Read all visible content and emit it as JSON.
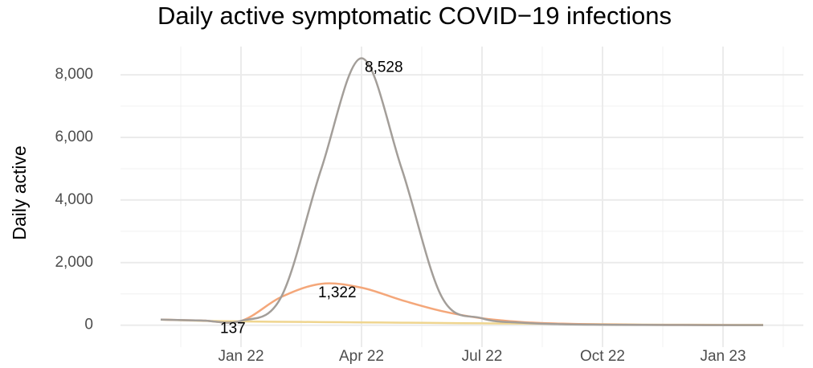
{
  "chart_data": {
    "type": "line",
    "title": "Daily active symptomatic COVID−19 infections",
    "y_label": "Daily active",
    "x": [
      "2021-11",
      "2021-12",
      "2022-01",
      "2022-02",
      "2022-03",
      "2022-04",
      "2022-05",
      "2022-06",
      "2022-07",
      "2022-08",
      "2022-09",
      "2022-10",
      "2022-11",
      "2022-12",
      "2023-01",
      "2023-02"
    ],
    "xlim": [
      "2021-10",
      "2023-03"
    ],
    "xticks": [
      {
        "value": "2022-01",
        "label": "Jan 22"
      },
      {
        "value": "2022-04",
        "label": "Apr 22"
      },
      {
        "value": "2022-07",
        "label": "Jul 22"
      },
      {
        "value": "2022-10",
        "label": "Oct 22"
      },
      {
        "value": "2023-01",
        "label": "Jan 23"
      }
    ],
    "ylim": [
      -700,
      8900
    ],
    "yticks": [
      0,
      {
        "value": 2000,
        "label": "2,000"
      },
      {
        "value": 4000,
        "label": "4,000"
      },
      {
        "value": 6000,
        "label": "6,000"
      },
      {
        "value": 8000,
        "label": "8,000"
      }
    ],
    "grid": true,
    "series": [
      {
        "color": "#efd58f",
        "values": [
          180,
          140,
          120,
          110,
          100,
          90,
          80,
          70,
          60,
          50,
          40,
          30,
          20,
          15,
          10,
          8
        ]
      },
      {
        "color": "#f4a77a",
        "values": [
          180,
          150,
          137,
          900,
          1322,
          1200,
          800,
          450,
          220,
          100,
          50,
          25,
          12,
          8,
          5,
          3
        ]
      },
      {
        "color": "#a39e99",
        "values": [
          180,
          150,
          137,
          900,
          5000,
          8528,
          5000,
          900,
          220,
          80,
          30,
          15,
          8,
          5,
          3,
          2
        ]
      }
    ],
    "annotations": [
      {
        "label": "8,528",
        "x": "2022-04",
        "value": 8528
      },
      {
        "label": "1,322",
        "x": "2022-03",
        "value": 1322
      },
      {
        "label": "137",
        "x": "2022-01",
        "value": 137
      }
    ]
  }
}
